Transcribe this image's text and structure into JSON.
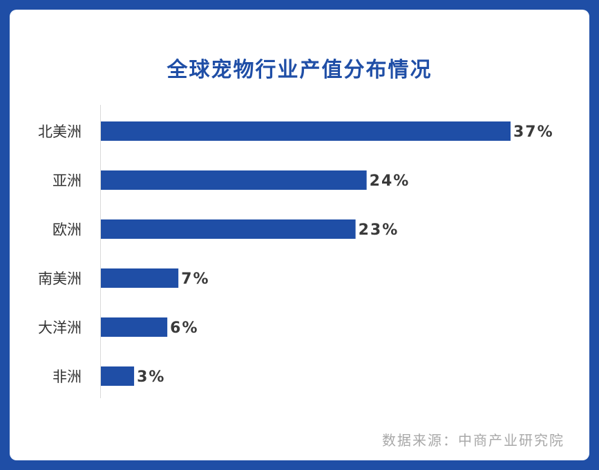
{
  "colors": {
    "background": "#1f4ea6",
    "bar": "#1f4ea6",
    "title": "#1f4ea6",
    "source": "#a8a8a8"
  },
  "chart_data": {
    "type": "bar",
    "orientation": "horizontal",
    "title": "全球宠物行业产值分布情况",
    "categories": [
      "北美洲",
      "亚洲",
      "欧洲",
      "南美洲",
      "大洋洲",
      "非洲"
    ],
    "values": [
      37,
      24,
      23,
      7,
      6,
      3
    ],
    "value_labels": [
      "37%",
      "24%",
      "23%",
      "7%",
      "6%",
      "3%"
    ],
    "unit": "%",
    "xlim": [
      0,
      37
    ],
    "grid": false,
    "legend": "none",
    "source": "数据来源：中商产业研究院"
  }
}
